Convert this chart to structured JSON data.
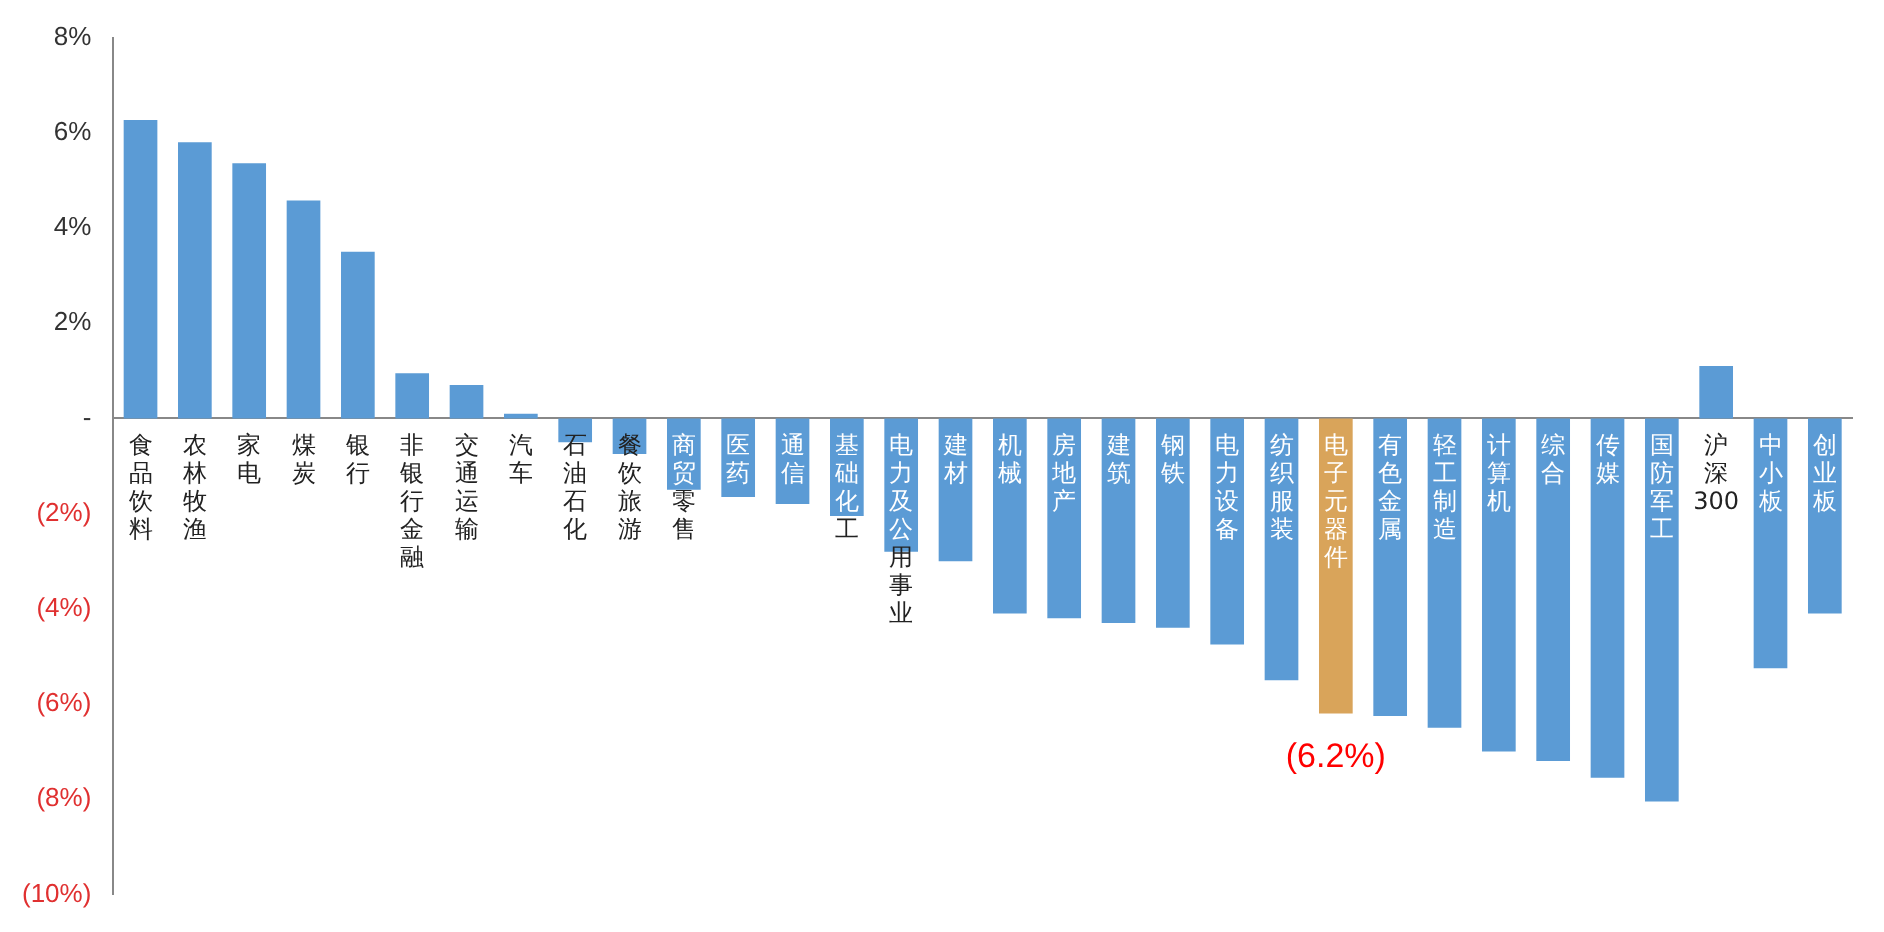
{
  "chart_data": {
    "type": "bar",
    "categories": [
      "食品饮料",
      "农林牧渔",
      "家电",
      "煤炭",
      "银行",
      "非银行金融",
      "交通运输",
      "汽车",
      "石油石化",
      "餐饮旅游",
      "商贸零售",
      "医药",
      "通信",
      "基础化工",
      "电力及公用事业",
      "建材",
      "机械",
      "房地产",
      "建筑",
      "钢铁",
      "电力设备",
      "纺织服装",
      "电子元器件",
      "有色金属",
      "轻工制造",
      "计算机",
      "综合",
      "传媒",
      "国防军工",
      "沪深300",
      "中小板",
      "创业板"
    ],
    "values": [
      6.27,
      5.8,
      5.36,
      4.58,
      3.5,
      0.95,
      0.7,
      0.1,
      -0.5,
      -0.75,
      -1.5,
      -1.65,
      -1.8,
      -2.05,
      -2.8,
      -3.0,
      -4.1,
      -4.2,
      -4.3,
      -4.4,
      -4.75,
      -5.5,
      -6.2,
      -6.25,
      -6.5,
      -7.0,
      -7.2,
      -7.55,
      -8.05,
      1.1,
      -5.25,
      -4.1
    ],
    "colors": [
      "#5b9bd5",
      "#5b9bd5",
      "#5b9bd5",
      "#5b9bd5",
      "#5b9bd5",
      "#5b9bd5",
      "#5b9bd5",
      "#5b9bd5",
      "#5b9bd5",
      "#5b9bd5",
      "#5b9bd5",
      "#5b9bd5",
      "#5b9bd5",
      "#5b9bd5",
      "#5b9bd5",
      "#5b9bd5",
      "#5b9bd5",
      "#5b9bd5",
      "#5b9bd5",
      "#5b9bd5",
      "#5b9bd5",
      "#5b9bd5",
      "#d9a45a",
      "#5b9bd5",
      "#5b9bd5",
      "#5b9bd5",
      "#5b9bd5",
      "#5b9bd5",
      "#5b9bd5",
      "#5b9bd5",
      "#5b9bd5",
      "#5b9bd5"
    ],
    "ylim": [
      -10,
      8
    ],
    "yticks": [
      {
        "value": -10,
        "label": "(10%)"
      },
      {
        "value": -8,
        "label": "(8%)"
      },
      {
        "value": -6,
        "label": "(6%)"
      },
      {
        "value": -4,
        "label": "(4%)"
      },
      {
        "value": -2,
        "label": "(2%)"
      },
      {
        "value": 0,
        "label": "-"
      },
      {
        "value": 2,
        "label": "2%"
      },
      {
        "value": 4,
        "label": "4%"
      },
      {
        "value": 6,
        "label": "6%"
      },
      {
        "value": 8,
        "label": "8%"
      }
    ],
    "annotations": [
      {
        "text": "(6.2%)",
        "x": "电子元器件",
        "y": -6.2
      }
    ],
    "grid": false,
    "legend": false
  }
}
